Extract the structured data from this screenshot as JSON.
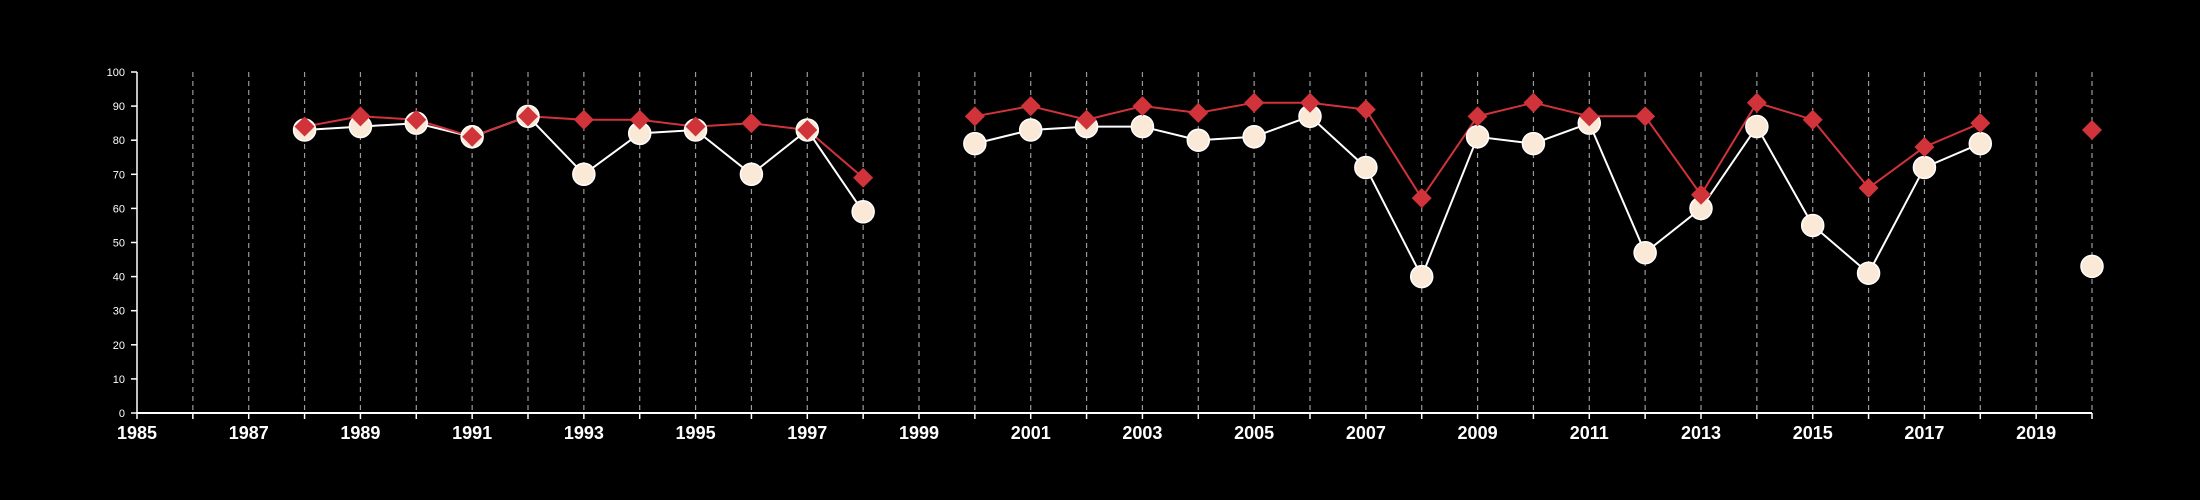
{
  "chart_data": {
    "type": "line",
    "title": "",
    "xlabel": "",
    "ylabel": "",
    "xlim": [
      1985,
      2020
    ],
    "ylim": [
      0,
      100
    ],
    "x_ticks": [
      1985,
      1987,
      1989,
      1991,
      1993,
      1995,
      1997,
      1999,
      2001,
      2003,
      2005,
      2007,
      2009,
      2011,
      2013,
      2015,
      2017,
      2019
    ],
    "y_ticks": [
      0,
      10,
      20,
      30,
      40,
      50,
      60,
      70,
      80,
      90,
      100
    ],
    "vertical_dashed_gridlines": true,
    "grid_every_year_from": 1986,
    "grid_every_year_to": 2020,
    "background": "#000000",
    "series": [
      {
        "marker": "diamond",
        "color": "#d0333a",
        "segments": [
          [
            [
              1988,
              84
            ],
            [
              1989,
              87
            ],
            [
              1990,
              86
            ],
            [
              1991,
              81
            ],
            [
              1992,
              87
            ],
            [
              1993,
              86
            ],
            [
              1994,
              86
            ],
            [
              1995,
              84
            ],
            [
              1996,
              85
            ],
            [
              1997,
              83
            ],
            [
              1998,
              69
            ]
          ],
          [
            [
              2000,
              87
            ],
            [
              2001,
              90
            ],
            [
              2002,
              86
            ],
            [
              2003,
              90
            ],
            [
              2004,
              88
            ],
            [
              2005,
              91
            ],
            [
              2006,
              91
            ],
            [
              2007,
              89
            ],
            [
              2008,
              63
            ],
            [
              2009,
              87
            ],
            [
              2010,
              91
            ],
            [
              2011,
              87
            ],
            [
              2012,
              87
            ],
            [
              2013,
              64
            ],
            [
              2014,
              91
            ],
            [
              2015,
              86
            ],
            [
              2016,
              66
            ],
            [
              2017,
              78
            ],
            [
              2018,
              85
            ]
          ],
          [
            [
              2020,
              83
            ]
          ]
        ]
      },
      {
        "marker": "circle",
        "color": "#ffffff",
        "fill": "#fbe9d7",
        "segments": [
          [
            [
              1988,
              83
            ],
            [
              1989,
              84
            ],
            [
              1990,
              85
            ],
            [
              1991,
              81
            ],
            [
              1992,
              87
            ],
            [
              1993,
              70
            ],
            [
              1994,
              82
            ],
            [
              1995,
              83
            ],
            [
              1996,
              70
            ],
            [
              1997,
              83
            ],
            [
              1998,
              59
            ]
          ],
          [
            [
              2000,
              79
            ],
            [
              2001,
              83
            ],
            [
              2002,
              84
            ],
            [
              2003,
              84
            ],
            [
              2004,
              80
            ],
            [
              2005,
              81
            ],
            [
              2006,
              87
            ],
            [
              2007,
              72
            ],
            [
              2008,
              40
            ],
            [
              2009,
              81
            ],
            [
              2010,
              79
            ],
            [
              2011,
              85
            ],
            [
              2012,
              47
            ],
            [
              2013,
              60
            ],
            [
              2014,
              84
            ],
            [
              2015,
              55
            ],
            [
              2016,
              41
            ],
            [
              2017,
              72
            ],
            [
              2018,
              79
            ]
          ],
          [
            [
              2020,
              43
            ]
          ]
        ]
      }
    ]
  }
}
